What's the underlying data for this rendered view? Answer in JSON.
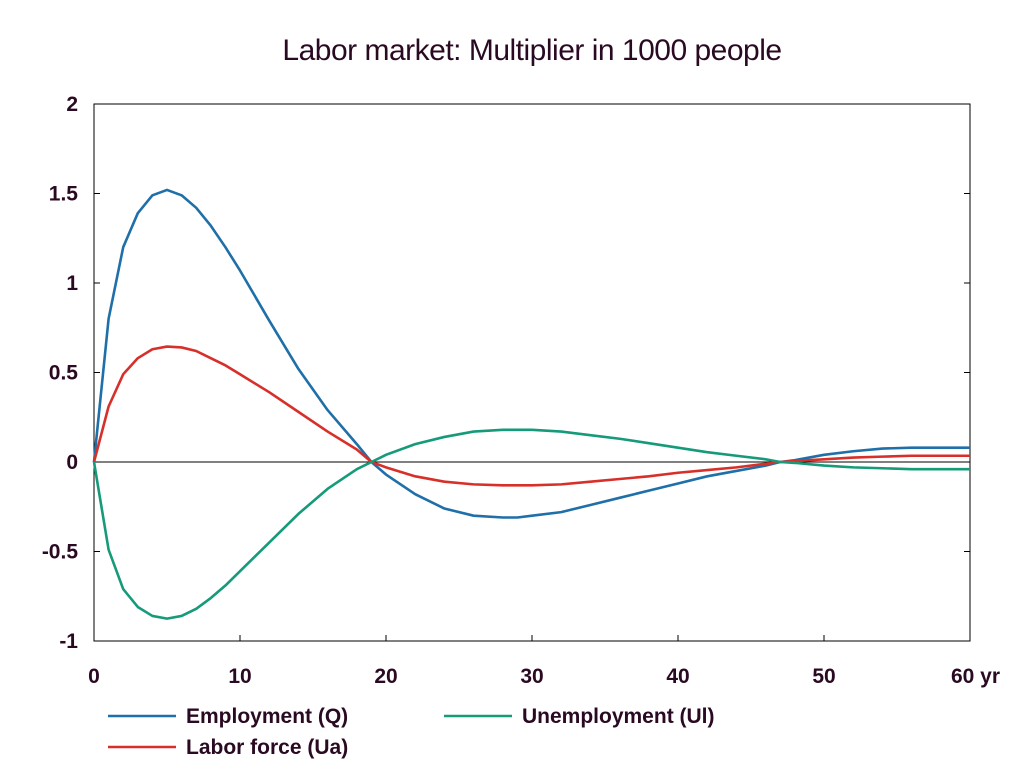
{
  "chart_data": {
    "type": "line",
    "title": "Labor market: Multiplier in 1000 people",
    "xlabel": "",
    "ylabel": "",
    "xlim": [
      0,
      60
    ],
    "ylim": [
      -1,
      2
    ],
    "x_ticks": [
      0,
      10,
      20,
      30,
      40,
      50,
      60
    ],
    "x_tick_labels": [
      "0",
      "10",
      "20",
      "30",
      "40",
      "50",
      "60 yr"
    ],
    "y_ticks": [
      -1,
      -0.5,
      0,
      0.5,
      1,
      1.5,
      2
    ],
    "y_tick_labels": [
      "-1",
      "-0.5",
      "0",
      "0.5",
      "1",
      "1.5",
      "2"
    ],
    "grid": false,
    "legend_position": "bottom",
    "x": [
      0,
      1,
      2,
      3,
      4,
      5,
      6,
      7,
      8,
      9,
      10,
      12,
      14,
      16,
      18,
      19,
      20,
      22,
      24,
      26,
      28,
      29,
      30,
      32,
      34,
      36,
      38,
      40,
      42,
      44,
      46,
      47,
      48,
      50,
      52,
      54,
      56,
      58,
      60
    ],
    "series": [
      {
        "name": "Employment (Q)",
        "color": "#1f6fa8",
        "values": [
          0,
          0.8,
          1.2,
          1.39,
          1.49,
          1.52,
          1.49,
          1.42,
          1.32,
          1.2,
          1.07,
          0.79,
          0.52,
          0.29,
          0.1,
          0.0,
          -0.07,
          -0.18,
          -0.26,
          -0.3,
          -0.31,
          -0.31,
          -0.3,
          -0.28,
          -0.24,
          -0.2,
          -0.16,
          -0.12,
          -0.08,
          -0.05,
          -0.02,
          0.0,
          0.01,
          0.04,
          0.06,
          0.075,
          0.08,
          0.08,
          0.08
        ]
      },
      {
        "name": "Labor force (Ua)",
        "color": "#d7302a",
        "values": [
          0,
          0.31,
          0.49,
          0.58,
          0.63,
          0.645,
          0.64,
          0.62,
          0.58,
          0.54,
          0.49,
          0.39,
          0.28,
          0.17,
          0.07,
          0.0,
          -0.03,
          -0.08,
          -0.11,
          -0.125,
          -0.13,
          -0.13,
          -0.13,
          -0.125,
          -0.11,
          -0.095,
          -0.08,
          -0.06,
          -0.045,
          -0.03,
          -0.01,
          0.0,
          0.005,
          0.015,
          0.025,
          0.03,
          0.035,
          0.035,
          0.035
        ]
      },
      {
        "name": "Unemployment (Ul)",
        "color": "#159a7a",
        "values": [
          0,
          -0.49,
          -0.71,
          -0.81,
          -0.86,
          -0.875,
          -0.86,
          -0.82,
          -0.76,
          -0.69,
          -0.61,
          -0.45,
          -0.29,
          -0.15,
          -0.04,
          0.0,
          0.04,
          0.1,
          0.14,
          0.17,
          0.18,
          0.18,
          0.18,
          0.17,
          0.15,
          0.13,
          0.105,
          0.08,
          0.055,
          0.035,
          0.015,
          0.0,
          -0.005,
          -0.02,
          -0.03,
          -0.035,
          -0.04,
          -0.04,
          -0.04
        ]
      }
    ]
  }
}
